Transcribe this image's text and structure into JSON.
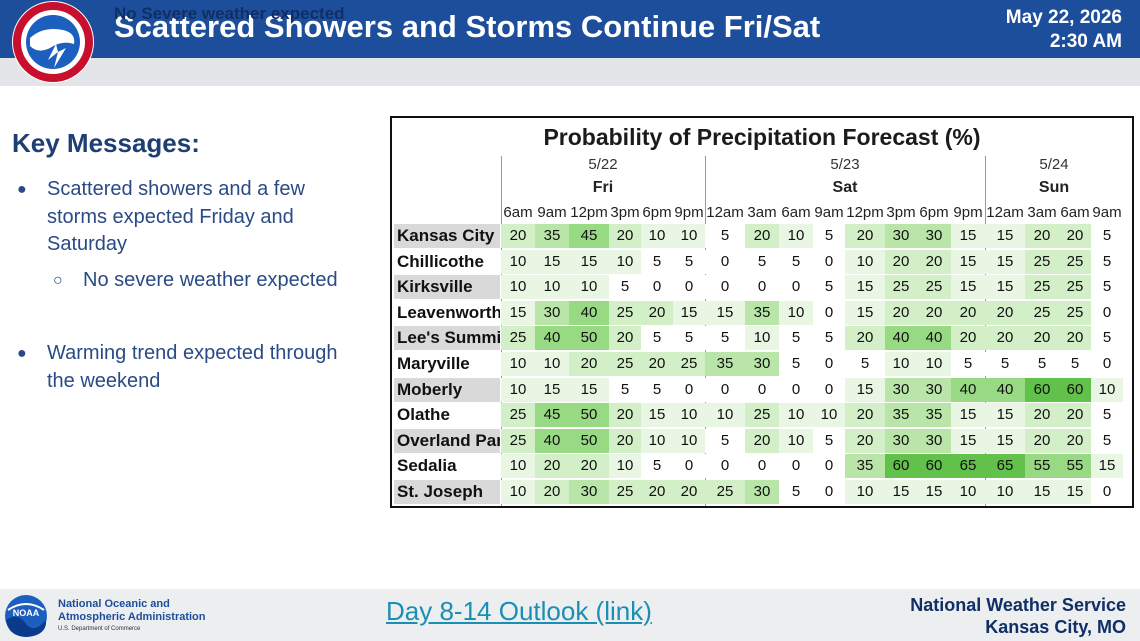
{
  "header": {
    "title": "Scattered Showers and Storms Continue Fri/Sat",
    "date": "May 22, 2026",
    "time": "2:30 AM",
    "subtitle": "No Severe weather expected",
    "logo_text": "NATIONAL WEATHER SERVICE"
  },
  "key_messages": {
    "title": "Key Messages:",
    "bullets": [
      "Scattered showers and a few storms expected Friday and Saturday",
      "No severe weather expected",
      "Warming trend expected through the weekend"
    ]
  },
  "chart_data": {
    "type": "table",
    "title": "Probability of Precipitation Forecast (%)",
    "days": [
      {
        "date": "5/22",
        "name": "Fri"
      },
      {
        "date": "5/23",
        "name": "Sat"
      },
      {
        "date": "5/24",
        "name": "Sun"
      }
    ],
    "times": [
      "6am",
      "9am",
      "12pm",
      "3pm",
      "6pm",
      "9pm",
      "12am",
      "3am",
      "6am",
      "9am",
      "12pm",
      "3pm",
      "6pm",
      "9pm",
      "12am",
      "3am",
      "6am",
      "9am"
    ],
    "rows": [
      {
        "city": "Kansas City",
        "values": [
          20,
          35,
          45,
          20,
          10,
          10,
          5,
          20,
          10,
          5,
          20,
          30,
          30,
          15,
          15,
          20,
          20,
          5
        ]
      },
      {
        "city": "Chillicothe",
        "values": [
          10,
          15,
          15,
          10,
          5,
          5,
          0,
          5,
          5,
          0,
          10,
          20,
          20,
          15,
          15,
          25,
          25,
          5
        ]
      },
      {
        "city": "Kirksville",
        "values": [
          10,
          10,
          10,
          5,
          0,
          0,
          0,
          0,
          0,
          5,
          15,
          25,
          25,
          15,
          15,
          25,
          25,
          5
        ]
      },
      {
        "city": "Leavenworth",
        "values": [
          15,
          30,
          40,
          25,
          20,
          15,
          15,
          35,
          10,
          0,
          15,
          20,
          20,
          20,
          20,
          25,
          25,
          0
        ]
      },
      {
        "city": "Lee's Summit",
        "values": [
          25,
          40,
          50,
          20,
          5,
          5,
          5,
          10,
          5,
          5,
          20,
          40,
          40,
          20,
          20,
          20,
          20,
          5
        ]
      },
      {
        "city": "Maryville",
        "values": [
          10,
          10,
          20,
          25,
          20,
          25,
          35,
          30,
          5,
          0,
          5,
          10,
          10,
          5,
          5,
          5,
          5,
          0
        ]
      },
      {
        "city": "Moberly",
        "values": [
          10,
          15,
          15,
          5,
          5,
          0,
          0,
          0,
          0,
          0,
          15,
          30,
          30,
          40,
          40,
          60,
          60,
          10
        ]
      },
      {
        "city": "Olathe",
        "values": [
          25,
          45,
          50,
          20,
          15,
          10,
          10,
          25,
          10,
          10,
          20,
          35,
          35,
          15,
          15,
          20,
          20,
          5
        ]
      },
      {
        "city": "Overland Park",
        "values": [
          25,
          40,
          50,
          20,
          10,
          10,
          5,
          20,
          10,
          5,
          20,
          30,
          30,
          15,
          15,
          20,
          20,
          5
        ]
      },
      {
        "city": "Sedalia",
        "values": [
          10,
          20,
          20,
          10,
          5,
          0,
          0,
          0,
          0,
          0,
          35,
          60,
          60,
          65,
          65,
          55,
          55,
          15
        ]
      },
      {
        "city": "St. Joseph",
        "values": [
          10,
          20,
          30,
          25,
          20,
          20,
          25,
          30,
          5,
          0,
          10,
          15,
          15,
          10,
          10,
          15,
          15,
          0
        ]
      }
    ]
  },
  "colors": {
    "header_blue": "#1d4e9b",
    "pop_low": "#ffffff",
    "pop_10": "#eaf6e4",
    "pop_20": "#d3efc8",
    "pop_30": "#b9e6a8",
    "pop_40": "#98d983",
    "pop_60": "#62c14a"
  },
  "footer": {
    "noaa_line1": "National Oceanic and",
    "noaa_line2": "Atmospheric Administration",
    "noaa_sub": "U.S. Department of Commerce",
    "noaa_logo_text": "NOAA",
    "link_text": "Day 8-14 Outlook (link)",
    "office_line1": "National Weather Service",
    "office_line2": "Kansas City, MO"
  }
}
